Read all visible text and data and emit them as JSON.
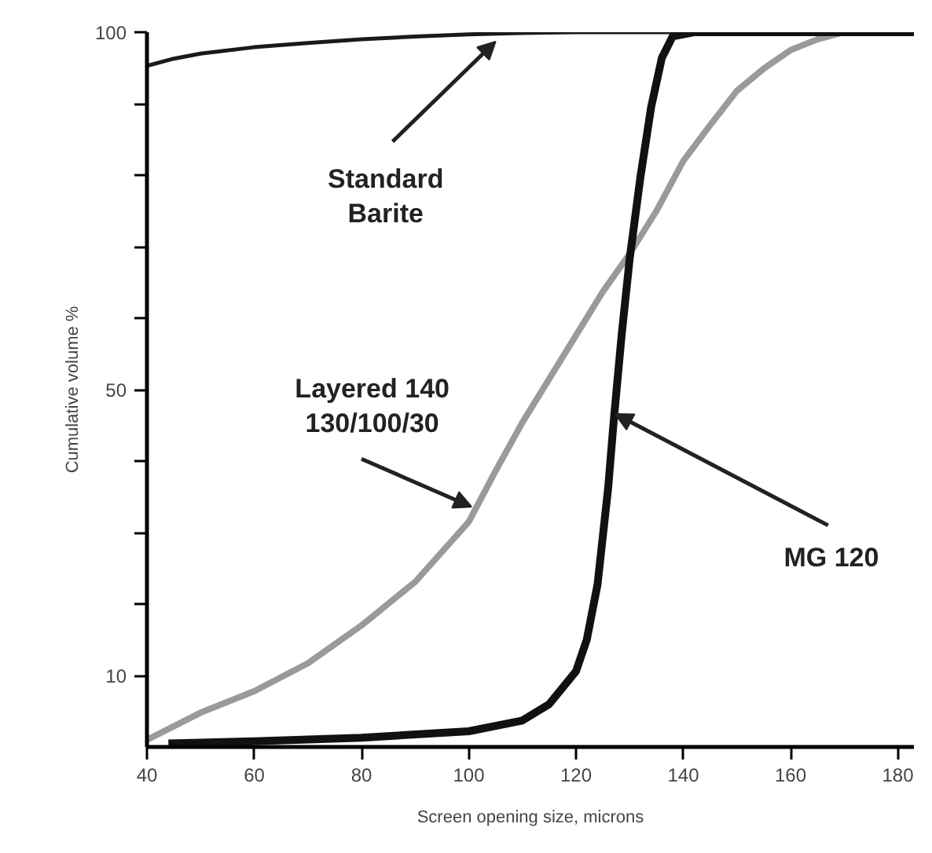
{
  "chart_data": {
    "type": "line",
    "xlabel": "Screen opening size, microns",
    "ylabel": "Cumulative volume %",
    "xlim": [
      40,
      183
    ],
    "xticks": [
      40,
      60,
      80,
      100,
      120,
      140,
      160,
      180
    ],
    "ylim": [
      0,
      100
    ],
    "yticks": [
      {
        "value": 10,
        "label": "10"
      },
      {
        "value": 20,
        "label": null
      },
      {
        "value": 30,
        "label": null
      },
      {
        "value": 40,
        "label": null
      },
      {
        "value": 50,
        "label": "50"
      },
      {
        "value": 60,
        "label": null
      },
      {
        "value": 70,
        "label": null
      },
      {
        "value": 80,
        "label": null
      },
      {
        "value": 90,
        "label": null
      },
      {
        "value": 100,
        "label": "100"
      }
    ],
    "grid": false,
    "marker": "none",
    "line_style": "solid",
    "series": [
      {
        "color": "#1a1a1a",
        "x": [
          40,
          45,
          50,
          60,
          70,
          80,
          90,
          100,
          110,
          120,
          130,
          140,
          150,
          160,
          170,
          183
        ],
        "values": [
          95.3,
          96.3,
          97,
          97.9,
          98.5,
          99,
          99.4,
          99.7,
          99.9,
          100,
          100,
          100,
          100,
          100,
          100,
          100
        ]
      },
      {
        "color": "#9a9a9a",
        "x": [
          40,
          50,
          60,
          70,
          80,
          90,
          100,
          105,
          110,
          115,
          120,
          125,
          130,
          135,
          140,
          145,
          150,
          155,
          160,
          165,
          170
        ],
        "values": [
          1,
          4.8,
          7.8,
          11.7,
          17,
          23.1,
          31.5,
          38.6,
          45.4,
          51.5,
          57.6,
          63.7,
          69,
          75,
          82,
          87,
          91.8,
          94.9,
          97.5,
          99,
          100
        ]
      },
      {
        "color": "#111111",
        "x": [
          44,
          60,
          80,
          100,
          110,
          115,
          120,
          122,
          124,
          126,
          127,
          128.5,
          130,
          132,
          134,
          136,
          138,
          142,
          160,
          183
        ],
        "values": [
          0.5,
          0.8,
          1.3,
          2.2,
          3.7,
          6,
          10.6,
          15,
          22.7,
          36.3,
          45.4,
          57.6,
          68.3,
          79.7,
          89.5,
          96.4,
          99.4,
          100,
          100,
          100
        ]
      }
    ],
    "annotations": [
      {
        "text": "Standard\nBarite",
        "x": 105,
        "y": 98.7
      },
      {
        "text": "Layered 140\n130/100/30",
        "x": 100.5,
        "y": 33.6
      },
      {
        "text": "MG 120",
        "x": 127.3,
        "y": 46.6
      }
    ]
  }
}
